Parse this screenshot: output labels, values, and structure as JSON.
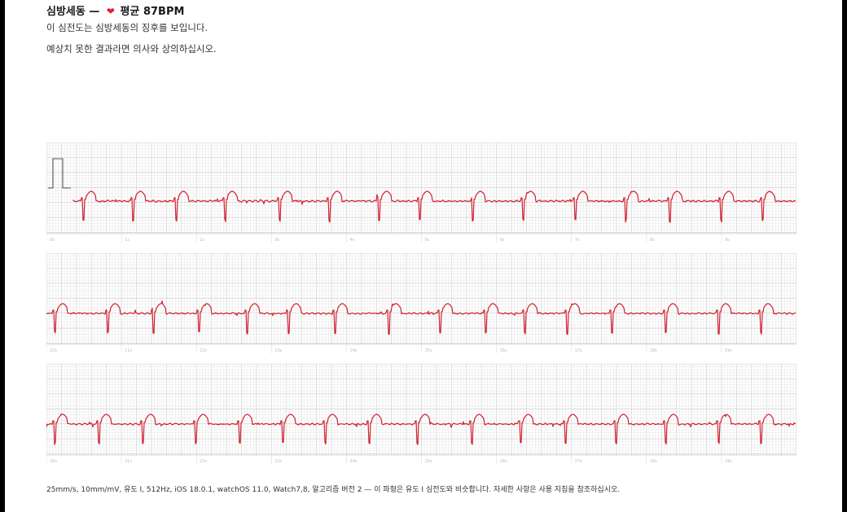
{
  "header": {
    "rhythm": "심방세동",
    "dash": "—",
    "avg_label": "평균 87BPM",
    "heart_icon": "heart-icon",
    "line1": "이 심전도는 심방세동의 징후를 보입니다.",
    "line2": "예상치 못한 결과라면 의사와 상의하십시오."
  },
  "strips": [
    {
      "time_labels": [
        "0s",
        "1s",
        "2s",
        "3s",
        "4s",
        "5s",
        "6s",
        "7s",
        "8s",
        "9s"
      ]
    },
    {
      "time_labels": [
        "10s",
        "11s",
        "12s",
        "13s",
        "14s",
        "15s",
        "16s",
        "17s",
        "18s",
        "19s"
      ]
    },
    {
      "time_labels": [
        "20s",
        "21s",
        "22s",
        "23s",
        "24s",
        "25s",
        "26s",
        "27s",
        "28s",
        "29s"
      ]
    }
  ],
  "footer": {
    "text": "25mm/s, 10mm/mV, 유도 I, 512Hz, iOS 18.0.1, watchOS 11.0, Watch7,8, 알고리즘 버전 2 — 이 파형은 유도 I 심전도와 비슷합니다. 자세한 사항은 사용 지침을 참조하십시오."
  },
  "colors": {
    "trace": "#d0202e",
    "grid_minor": "#e6e6e6",
    "grid_major": "#cfcfcf",
    "heart": "#e02030"
  }
}
